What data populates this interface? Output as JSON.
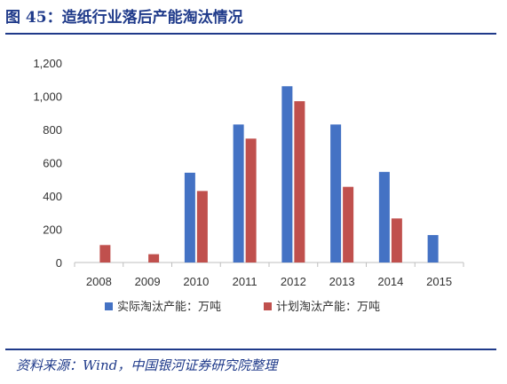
{
  "title": "图 45：造纸行业落后产能淘汰情况",
  "source": "资料来源：Wind，中国银河证券研究院整理",
  "chart_data": {
    "type": "bar",
    "categories": [
      "2008",
      "2009",
      "2010",
      "2011",
      "2012",
      "2013",
      "2014",
      "2015"
    ],
    "series": [
      {
        "name": "实际淘汰产能：万吨",
        "color": "#4472c4",
        "values": [
          null,
          null,
          540,
          830,
          1060,
          830,
          545,
          165
        ]
      },
      {
        "name": "计划淘汰产能：万吨",
        "color": "#c0504d",
        "values": [
          105,
          50,
          430,
          745,
          970,
          455,
          265,
          null
        ]
      }
    ],
    "ylim": [
      0,
      1200
    ],
    "yticks": [
      0,
      200,
      400,
      600,
      800,
      1000,
      1200
    ],
    "ytick_labels": [
      "0",
      "200",
      "400",
      "600",
      "800",
      "1,000",
      "1,200"
    ],
    "grid": false,
    "legend": "bottom"
  }
}
